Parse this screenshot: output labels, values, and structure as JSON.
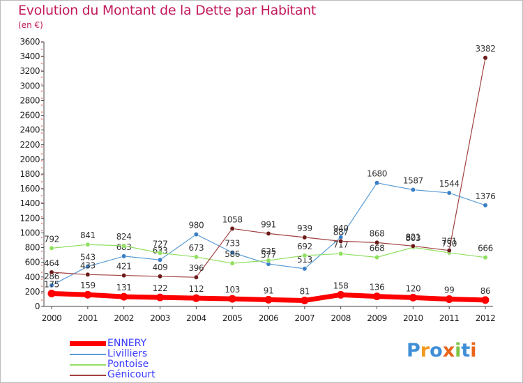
{
  "title": "Evolution du Montant de la Dette par Habitant",
  "unit": "(en €)",
  "logo": {
    "text": "Proxiti",
    "letters": [
      "P",
      "r",
      "o",
      "x",
      "i",
      "t",
      "i"
    ],
    "colors": [
      "#3f8fd6",
      "#f29a1f",
      "#3f8fd6",
      "#e8641b",
      "#7cc243",
      "#3f8fd6",
      "#e8641b"
    ]
  },
  "chart_data": {
    "type": "line",
    "title": "Evolution du Montant de la Dette par Habitant",
    "ylabel": "(en €)",
    "ylim": [
      0,
      3600
    ],
    "yticks": [
      0,
      200,
      400,
      600,
      800,
      1000,
      1200,
      1400,
      1600,
      1800,
      2000,
      2200,
      2400,
      2600,
      2800,
      3000,
      3200,
      3400,
      3600
    ],
    "grid": false,
    "legend_position": "bottom-left",
    "x": [
      "2000",
      "2001",
      "2002",
      "2003",
      "2004",
      "2005",
      "2006",
      "2007",
      "2008",
      "2009",
      "2010",
      "2011",
      "2012"
    ],
    "series": [
      {
        "name": "ENNERY",
        "color": "#ff0000",
        "width": 7,
        "values": [
          175,
          159,
          131,
          122,
          112,
          103,
          91,
          81,
          158,
          136,
          120,
          99,
          86
        ],
        "labels": [
          "175",
          "159",
          "131",
          "122",
          "112",
          "103",
          "91",
          "81",
          "158",
          "136",
          "120",
          "99",
          "86"
        ]
      },
      {
        "name": "Livilliers",
        "color": "#5b9bd5",
        "width": 1.2,
        "marker": "#3a7fc6",
        "values": [
          286,
          543,
          683,
          633,
          980,
          733,
          577,
          513,
          940,
          1680,
          1587,
          1544,
          1376
        ],
        "labels": [
          "286",
          "543",
          "683",
          "633",
          "980",
          "733",
          "577",
          "513",
          "940",
          "1680",
          "1587",
          "1544",
          "1376"
        ]
      },
      {
        "name": "Pontoise",
        "color": "#90e060",
        "width": 1.2,
        "marker": "#90e060",
        "values": [
          792,
          841,
          824,
          727,
          673,
          586,
          625,
          692,
          717,
          668,
          803,
          730,
          666
        ],
        "labels": [
          "792",
          "841",
          "824",
          "727",
          "673",
          "586",
          "625",
          "692",
          "717",
          "668",
          "803",
          "730",
          "666"
        ]
      },
      {
        "name": "Génicourt",
        "color": "#a04040",
        "width": 1.2,
        "marker": "#6b1a1a",
        "values": [
          464,
          433,
          421,
          409,
          396,
          1058,
          991,
          939,
          887,
          868,
          821,
          761,
          3382
        ],
        "labels": [
          "464",
          "433",
          "421",
          "409",
          "396",
          "1058",
          "991",
          "939",
          "887",
          "868",
          "821",
          "761",
          "3382"
        ]
      }
    ]
  }
}
